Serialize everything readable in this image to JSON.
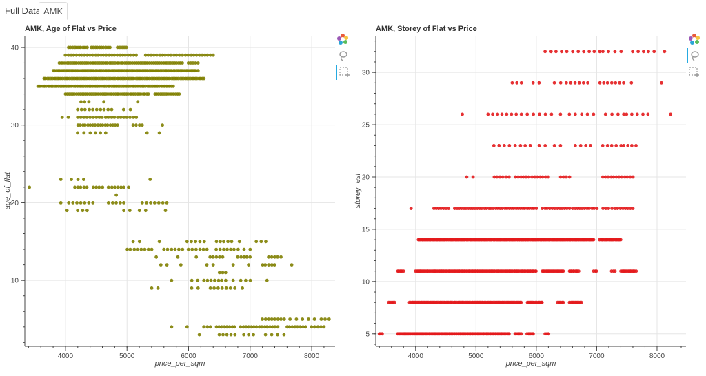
{
  "tabs": [
    {
      "label": "Full Data",
      "active": false
    },
    {
      "label": "AMK",
      "active": true
    }
  ],
  "colors": {
    "series_left": "#808000",
    "series_right": "#e31a1c"
  },
  "toolbar": {
    "icons": [
      "bokeh-logo-icon",
      "lasso-select-icon",
      "box-select-icon"
    ]
  },
  "chart_data": [
    {
      "type": "scatter",
      "title": "AMK, Age of Flat vs Price",
      "xlabel": "price_per_sqm",
      "ylabel": "age_of_flat",
      "xlim": [
        3340,
        8380
      ],
      "ylim": [
        1.5,
        41.5
      ],
      "xticks": [
        4000,
        5000,
        6000,
        7000,
        8000
      ],
      "yticks": [
        10,
        20,
        30,
        40
      ],
      "grid": true,
      "series": [
        {
          "color": "#808000",
          "bands": [
            {
              "y": 40,
              "x_ranges": [
                [
                  4050,
                  4350
                ],
                [
                  4420,
                  4720
                ],
                [
                  4850,
                  4990
                ]
              ],
              "approx_count": 24
            },
            {
              "y": 39,
              "x_ranges": [
                [
                  4000,
                  5150
                ],
                [
                  5300,
                  5900
                ],
                [
                  5950,
                  6400
                ]
              ],
              "approx_count": 52
            },
            {
              "y": 38,
              "x_ranges": [
                [
                  3900,
                  5900
                ],
                [
                  6000,
                  6150
                ]
              ],
              "approx_count": 70
            },
            {
              "y": 37,
              "x_ranges": [
                [
                  3800,
                  6150
                ]
              ],
              "approx_count": 90
            },
            {
              "y": 36,
              "x_ranges": [
                [
                  3650,
                  6250
                ]
              ],
              "approx_count": 95
            },
            {
              "y": 35,
              "x_ranges": [
                [
                  3550,
                  5750
                ]
              ],
              "approx_count": 80
            },
            {
              "y": 34,
              "x_ranges": [
                [
                  4000,
                  5350
                ],
                [
                  5450,
                  5850
                ]
              ],
              "approx_count": 60
            },
            {
              "y": 33,
              "x_ranges": [
                [
                  4250,
                  4380
                ],
                [
                  4600,
                  4650
                ],
                [
                  5150,
                  5200
                ]
              ],
              "approx_count": 6
            },
            {
              "y": 32,
              "x_ranges": [
                [
                  4200,
                  4750
                ],
                [
                  4950,
                  5050
                ]
              ],
              "approx_count": 12
            },
            {
              "y": 31,
              "x_ranges": [
                [
                  3950,
                  4050
                ],
                [
                  4200,
                  5150
                ]
              ],
              "approx_count": 22
            },
            {
              "y": 30,
              "x_ranges": [
                [
                  4200,
                  4850
                ],
                [
                  5100,
                  5250
                ],
                [
                  5550,
                  5600
                ]
              ],
              "approx_count": 22
            },
            {
              "y": 29,
              "x_ranges": [
                [
                  4200,
                  4300
                ],
                [
                  4400,
                  4650
                ],
                [
                  5300,
                  5350
                ],
                [
                  5500,
                  5550
                ]
              ],
              "approx_count": 8
            },
            {
              "y": 23,
              "x_ranges": [
                [
                  3900,
                  3950
                ],
                [
                  4100,
                  4300
                ],
                [
                  5350,
                  5400
                ]
              ],
              "approx_count": 5
            },
            {
              "y": 22,
              "x_ranges": [
                [
                  3400,
                  3430
                ],
                [
                  4150,
                  4350
                ],
                [
                  4450,
                  4600
                ],
                [
                  4700,
                  4950
                ],
                [
                  5000,
                  5050
                ]
              ],
              "approx_count": 16
            },
            {
              "y": 21,
              "x_ranges": [
                [
                  4800,
                  4850
                ]
              ],
              "approx_count": 1
            },
            {
              "y": 20,
              "x_ranges": [
                [
                  3900,
                  3950
                ],
                [
                  4050,
                  4450
                ],
                [
                  4700,
                  4950
                ],
                [
                  5250,
                  5650
                ]
              ],
              "approx_count": 20
            },
            {
              "y": 19,
              "x_ranges": [
                [
                  4000,
                  4050
                ],
                [
                  4200,
                  4350
                ],
                [
                  4950,
                  5050
                ],
                [
                  5200,
                  5300
                ],
                [
                  5600,
                  5650
                ]
              ],
              "approx_count": 10
            },
            {
              "y": 15,
              "x_ranges": [
                [
                  5100,
                  5200
                ],
                [
                  5500,
                  5550
                ],
                [
                  5950,
                  6000
                ],
                [
                  6050,
                  6250
                ],
                [
                  6450,
                  6700
                ],
                [
                  6800,
                  6850
                ],
                [
                  7100,
                  7250
                ]
              ],
              "approx_count": 16
            },
            {
              "y": 14,
              "x_ranges": [
                [
                  5000,
                  5400
                ],
                [
                  5600,
                  5900
                ],
                [
                  6000,
                  6300
                ],
                [
                  6450,
                  6800
                ],
                [
                  6900,
                  7000
                ]
              ],
              "approx_count": 30
            },
            {
              "y": 13,
              "x_ranges": [
                [
                  5450,
                  5500
                ],
                [
                  5800,
                  5850
                ],
                [
                  6100,
                  6150
                ],
                [
                  6350,
                  6550
                ],
                [
                  6800,
                  7000
                ],
                [
                  7300,
                  7500
                ]
              ],
              "approx_count": 20
            },
            {
              "y": 12,
              "x_ranges": [
                [
                  5550,
                  5650
                ],
                [
                  5850,
                  5900
                ],
                [
                  6300,
                  6400
                ],
                [
                  6700,
                  6750
                ],
                [
                  6950,
                  7000
                ],
                [
                  7200,
                  7400
                ],
                [
                  7650,
                  7700
                ]
              ],
              "approx_count": 14
            },
            {
              "y": 11,
              "x_ranges": [
                [
                  6500,
                  6600
                ]
              ],
              "approx_count": 3
            },
            {
              "y": 10,
              "x_ranges": [
                [
                  5700,
                  5750
                ],
                [
                  6050,
                  6150
                ],
                [
                  6250,
                  6600
                ],
                [
                  6700,
                  6750
                ],
                [
                  6850,
                  7000
                ],
                [
                  7250,
                  7300
                ]
              ],
              "approx_count": 16
            },
            {
              "y": 9,
              "x_ranges": [
                [
                  5400,
                  5500
                ],
                [
                  6050,
                  6150
                ],
                [
                  6350,
                  6750
                ],
                [
                  6850,
                  6900
                ]
              ],
              "approx_count": 12
            },
            {
              "y": 5,
              "x_ranges": [
                [
                  7200,
                  7500
                ],
                [
                  7550,
                  7650
                ],
                [
                  7750,
                  7850
                ],
                [
                  7950,
                  8050
                ],
                [
                  8150,
                  8280
                ]
              ],
              "approx_count": 16
            },
            {
              "y": 4,
              "x_ranges": [
                [
                  5700,
                  5750
                ],
                [
                  5950,
                  6000
                ],
                [
                  6250,
                  6350
                ],
                [
                  6450,
                  6750
                ],
                [
                  6850,
                  7450
                ],
                [
                  7600,
                  7900
                ],
                [
                  8000,
                  8200
                ]
              ],
              "approx_count": 40
            },
            {
              "y": 3,
              "x_ranges": [
                [
                  6150,
                  6200
                ],
                [
                  6500,
                  6750
                ],
                [
                  6900,
                  7050
                ],
                [
                  7250,
                  7350
                ],
                [
                  7450,
                  7550
                ]
              ],
              "approx_count": 14
            }
          ]
        }
      ]
    },
    {
      "type": "scatter",
      "title": "AMK, Storey of Flat vs Price",
      "xlabel": "price_per_sqm",
      "ylabel": "storey_est",
      "xlim": [
        3340,
        8480
      ],
      "ylim": [
        3.8,
        33.5
      ],
      "xticks": [
        4000,
        5000,
        6000,
        7000,
        8000
      ],
      "yticks": [
        5,
        10,
        15,
        20,
        25,
        30
      ],
      "grid": true,
      "series": [
        {
          "color": "#e31a1c",
          "bands": [
            {
              "y": 32,
              "x_ranges": [
                [
                  6150,
                  6600
                ],
                [
                  6700,
                  7050
                ],
                [
                  7100,
                  7400
                ],
                [
                  7600,
                  7950
                ],
                [
                  8100,
                  8150
                ]
              ],
              "approx_count": 20
            },
            {
              "y": 29,
              "x_ranges": [
                [
                  5600,
                  5750
                ],
                [
                  5950,
                  6050
                ],
                [
                  6300,
                  6400
                ],
                [
                  6500,
                  6850
                ],
                [
                  7050,
                  7450
                ],
                [
                  7550,
                  7600
                ],
                [
                  8050,
                  8100
                ]
              ],
              "approx_count": 22
            },
            {
              "y": 26,
              "x_ranges": [
                [
                  4750,
                  4800
                ],
                [
                  5200,
                  5750
                ],
                [
                  5850,
                  6250
                ],
                [
                  6350,
                  6450
                ],
                [
                  6550,
                  6950
                ],
                [
                  7150,
                  7450
                ],
                [
                  7500,
                  7850
                ],
                [
                  8200,
                  8250
                ]
              ],
              "approx_count": 30
            },
            {
              "y": 23,
              "x_ranges": [
                [
                  5300,
                  5550
                ],
                [
                  5650,
                  5900
                ],
                [
                  6050,
                  6150
                ],
                [
                  6300,
                  6400
                ],
                [
                  6650,
                  6900
                ],
                [
                  7100,
                  7400
                ],
                [
                  7450,
                  7650
                ]
              ],
              "approx_count": 26
            },
            {
              "y": 20,
              "x_ranges": [
                [
                  4850,
                  4950
                ],
                [
                  5300,
                  5550
                ],
                [
                  5650,
                  6200
                ],
                [
                  6400,
                  6550
                ],
                [
                  7100,
                  7600
                ]
              ],
              "approx_count": 38
            },
            {
              "y": 17,
              "x_ranges": [
                [
                  3900,
                  3950
                ],
                [
                  4300,
                  4550
                ],
                [
                  4650,
                  6000
                ],
                [
                  6100,
                  6550
                ],
                [
                  6600,
                  7000
                ],
                [
                  7100,
                  7300
                ],
                [
                  7350,
                  7600
                ]
              ],
              "approx_count": 80
            },
            {
              "y": 14,
              "x_ranges": [
                [
                  4050,
                  6950
                ],
                [
                  7050,
                  7400
                ]
              ],
              "approx_count": 190
            },
            {
              "y": 11,
              "x_ranges": [
                [
                  3700,
                  3800
                ],
                [
                  4000,
                  6000
                ],
                [
                  6100,
                  6450
                ],
                [
                  6550,
                  6700
                ],
                [
                  6950,
                  7000
                ],
                [
                  7250,
                  7300
                ],
                [
                  7400,
                  7650
                ]
              ],
              "approx_count": 170
            },
            {
              "y": 8,
              "x_ranges": [
                [
                  3550,
                  3650
                ],
                [
                  3900,
                  5750
                ],
                [
                  5850,
                  6100
                ],
                [
                  6350,
                  6450
                ],
                [
                  6550,
                  6750
                ]
              ],
              "approx_count": 120
            },
            {
              "y": 5,
              "x_ranges": [
                [
                  3400,
                  3450
                ],
                [
                  3700,
                  5550
                ],
                [
                  5650,
                  5750
                ],
                [
                  5850,
                  5950
                ],
                [
                  6150,
                  6200
                ]
              ],
              "approx_count": 130
            }
          ]
        }
      ]
    }
  ]
}
